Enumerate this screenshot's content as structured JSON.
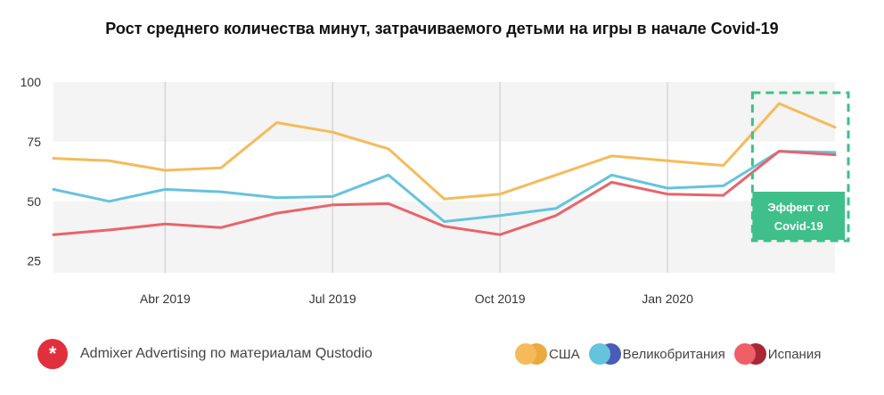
{
  "chart_data": {
    "type": "line",
    "title": "Рост среднего количества минут, затрачиваемого детьми на игры в начале Covid-19",
    "xlabel": "",
    "ylabel": "",
    "ylim": [
      20,
      100
    ],
    "yticks": [
      25,
      50,
      75,
      100
    ],
    "x_tick_labels": [
      "Abr 2019",
      "Jul 2019",
      "Oct 2019",
      "Jan 2020"
    ],
    "x_tick_positions": [
      2,
      5,
      8,
      11
    ],
    "x": [
      0,
      1,
      2,
      3,
      4,
      5,
      6,
      7,
      8,
      9,
      10,
      11,
      12,
      13,
      14
    ],
    "series": [
      {
        "name": "США",
        "color": "#f5bb5a",
        "values": [
          68,
          67,
          63,
          64,
          83,
          79,
          72,
          51,
          53,
          61,
          69,
          67,
          65,
          91,
          81
        ]
      },
      {
        "name": "Великобритания",
        "color": "#66c3dd",
        "values": [
          55,
          50,
          55,
          54,
          51.5,
          52,
          61,
          41.5,
          44,
          47,
          61,
          55.5,
          56.5,
          71,
          70.5
        ]
      },
      {
        "name": "Испания",
        "color": "#e9636b",
        "values": [
          36,
          38,
          40.5,
          39,
          45,
          48.5,
          49,
          39.5,
          36,
          44,
          58,
          53,
          52.5,
          71,
          69.5
        ]
      }
    ],
    "legend": "bottom-right",
    "grid": "horizontal bands",
    "annotation": {
      "text_line1": "Эффект от",
      "text_line2": "Covid-19",
      "from_index": 13,
      "to_index": 14,
      "box_color": "#3fbf8a"
    }
  },
  "footer": {
    "source_icon": "*",
    "source_text": "Admixer Advertising по материалам Qustodio"
  },
  "legend_items": [
    {
      "label": "США",
      "color_a": "#f5bb5a",
      "color_b": "#ebaa3e"
    },
    {
      "label": "Великобритания",
      "color_a": "#66c3dd",
      "color_b": "#4a5cb8"
    },
    {
      "label": "Испания",
      "color_a": "#ee5f68",
      "color_b": "#a82735"
    }
  ]
}
